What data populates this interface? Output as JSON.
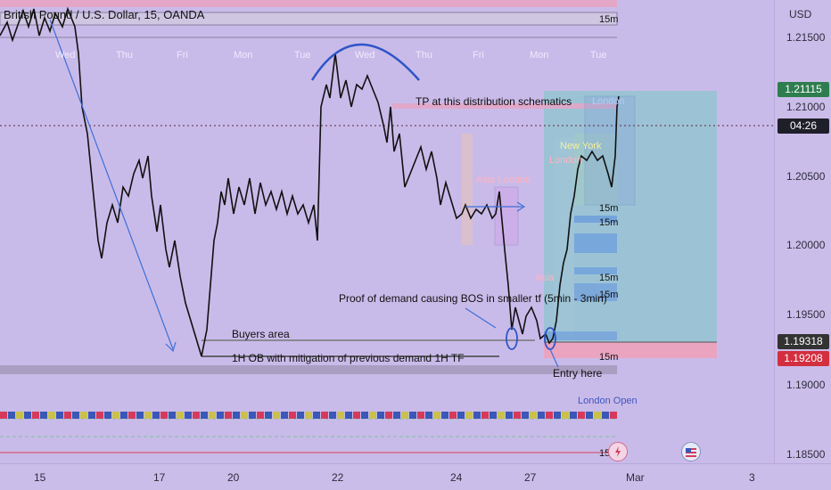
{
  "header": {
    "title": "British Pound / U.S. Dollar, 15, OANDA"
  },
  "price_axis": {
    "currency": "USD",
    "ticks": [
      "1.21500",
      "1.21000",
      "1.20500",
      "1.20000",
      "1.19500",
      "1.19000",
      "1.18500"
    ],
    "current_price": "1.21115",
    "countdown": "04:26",
    "level_1": "1.19318",
    "level_2": "1.19208"
  },
  "time_axis": {
    "ticks": [
      "15",
      "17",
      "20",
      "22",
      "24",
      "27",
      "Mar",
      "3"
    ]
  },
  "weekday_labels": [
    "Wed",
    "Thu",
    "Fri",
    "Mon",
    "Tue",
    "Wed",
    "Thu",
    "Fri",
    "Mon",
    "Tue"
  ],
  "timeframe_label": "15m",
  "annotations": {
    "tp": "TP at this distribution schematics",
    "proof": "Proof of demand causing BOS in smaller tf (5min - 3min)",
    "buyers": "Buyers area",
    "ob": "1H OB with mitigation of previous demand 1H TF",
    "entry": "Entry here"
  },
  "sessions": {
    "asia_london": "Asia London",
    "london": "London",
    "asia": "Asia",
    "new_york": "New York",
    "london_open": "London Open"
  },
  "colors": {
    "background": "#c9bbe9",
    "candle": "#111111",
    "position_profit": "#7ec8c8",
    "position_loss": "#f0a0b8",
    "current_price": "#2e7d4f",
    "stop_price": "#d32f3f",
    "level_price": "#333333"
  }
}
